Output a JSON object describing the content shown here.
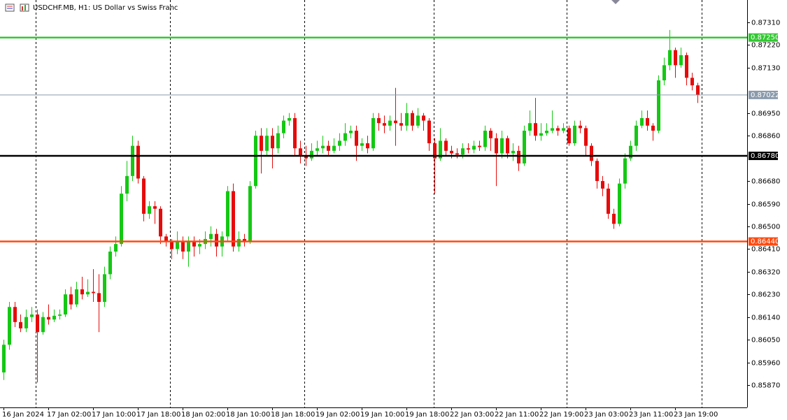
{
  "chart_data": {
    "type": "candlestick",
    "title": "USDCHF.MB, H1:  US Dollar vs Swiss Franc",
    "categories": [
      "16 Jan 2024",
      null,
      null,
      null,
      null,
      null,
      null,
      null,
      "17 Jan 02:00",
      null,
      null,
      null,
      null,
      null,
      null,
      null,
      "17 Jan 10:00",
      null,
      null,
      null,
      null,
      null,
      null,
      null,
      "17 Jan 18:00",
      null,
      null,
      null,
      null,
      null,
      null,
      null,
      "18 Jan 02:00",
      null,
      null,
      null,
      null,
      null,
      null,
      null,
      "18 Jan 10:00",
      null,
      null,
      null,
      null,
      null,
      null,
      null,
      "18 Jan 18:00",
      null,
      null,
      null,
      null,
      null,
      null,
      null,
      "19 Jan 02:00",
      null,
      null,
      null,
      null,
      null,
      null,
      null,
      "19 Jan 10:00",
      null,
      null,
      null,
      null,
      null,
      null,
      null,
      "19 Jan 18:00",
      null,
      null,
      null,
      null,
      null,
      null,
      null,
      "22 Jan 03:00",
      null,
      null,
      null,
      null,
      null,
      null,
      null,
      "22 Jan 11:00",
      null,
      null,
      null,
      null,
      null,
      null,
      null,
      "22 Jan 19:00",
      null,
      null,
      null,
      null,
      null,
      null,
      null,
      "23 Jan 03:00",
      null,
      null,
      null,
      null,
      null,
      null,
      null,
      "23 Jan 11:00",
      null,
      null,
      null,
      null,
      null,
      null,
      null,
      "23 Jan 19:00",
      null,
      null,
      null,
      null
    ],
    "open": [
      0.8592,
      0.8603,
      0.8618,
      0.8612,
      0.86095,
      0.8614,
      0.8615,
      0.8608,
      0.8614,
      0.8613,
      0.86145,
      0.8615,
      0.8623,
      0.8619,
      0.8625,
      0.8623,
      0.8624,
      0.86235,
      0.862,
      0.8631,
      0.864,
      0.8643,
      0.8663,
      0.867,
      0.8682,
      0.8669,
      0.8655,
      0.8658,
      0.8657,
      0.8646,
      0.8644,
      0.8641,
      0.8644,
      0.864,
      0.8644,
      0.8642,
      0.8643,
      0.8645,
      0.8647,
      0.8642,
      0.8646,
      0.8664,
      0.8642,
      0.8645,
      0.8644,
      0.8666,
      0.8686,
      0.868,
      0.8686,
      0.8681,
      0.8687,
      0.8692,
      0.8693,
      0.8681,
      0.8678,
      0.8677,
      0.868,
      0.8681,
      0.8682,
      0.868,
      0.8682,
      0.8684,
      0.8687,
      0.8688,
      0.8682,
      0.8683,
      0.8681,
      0.8693,
      0.8691,
      0.869,
      0.8692,
      0.8691,
      0.869,
      0.8695,
      0.869,
      0.8694,
      0.8692,
      0.8683,
      0.8677,
      0.8684,
      0.868,
      0.8679,
      0.86785,
      0.8681,
      0.86805,
      0.8682,
      0.86815,
      0.8688,
      0.8685,
      0.8679,
      0.8685,
      0.8679,
      0.868,
      0.8675,
      0.8688,
      0.8691,
      0.8686,
      0.8687,
      0.8688,
      0.8689,
      0.8688,
      0.8689,
      0.8683,
      0.869,
      0.8689,
      0.8682,
      0.8676,
      0.8668,
      0.8665,
      0.8655,
      0.8651,
      0.8667,
      0.8677,
      0.8682,
      0.869,
      0.8693,
      0.869,
      0.8688,
      0.8708,
      0.8714,
      0.872,
      0.8714,
      0.8718,
      0.8709,
      0.8706
    ],
    "high": [
      0.8605,
      0.862,
      0.862,
      0.8615,
      0.8617,
      0.8618,
      0.8617,
      0.8616,
      0.8619,
      0.8617,
      0.8617,
      0.8625,
      0.8626,
      0.8628,
      0.863,
      0.8629,
      0.8633,
      0.8631,
      0.8634,
      0.8642,
      0.8646,
      0.8666,
      0.8676,
      0.8686,
      0.8684,
      0.867,
      0.866,
      0.866,
      0.8658,
      0.8647,
      0.8645,
      0.8648,
      0.8646,
      0.8646,
      0.8646,
      0.8645,
      0.8648,
      0.865,
      0.8649,
      0.8648,
      0.8666,
      0.8667,
      0.8648,
      0.8647,
      0.8668,
      0.8688,
      0.8689,
      0.8689,
      0.8689,
      0.869,
      0.8694,
      0.8695,
      0.8695,
      0.8684,
      0.8682,
      0.8683,
      0.8684,
      0.8686,
      0.8684,
      0.8685,
      0.8687,
      0.8691,
      0.869,
      0.869,
      0.8685,
      0.8686,
      0.8695,
      0.8695,
      0.8694,
      0.8694,
      0.8705,
      0.8695,
      0.8699,
      0.8696,
      0.8697,
      0.8695,
      0.8693,
      0.8685,
      0.8689,
      0.8685,
      0.8682,
      0.8681,
      0.8683,
      0.8683,
      0.8684,
      0.8684,
      0.869,
      0.8689,
      0.8687,
      0.8688,
      0.8686,
      0.8683,
      0.8682,
      0.869,
      0.8696,
      0.8701,
      0.8691,
      0.8691,
      0.8696,
      0.869,
      0.8691,
      0.869,
      0.8692,
      0.8692,
      0.869,
      0.8683,
      0.8677,
      0.867,
      0.8667,
      0.8657,
      0.8669,
      0.8679,
      0.8684,
      0.8692,
      0.8696,
      0.8696,
      0.8691,
      0.871,
      0.8717,
      0.8728,
      0.8721,
      0.8721,
      0.8719,
      0.8711,
      0.8707
    ],
    "low": [
      0.8589,
      0.8601,
      0.861,
      0.8608,
      0.8608,
      0.8612,
      0.8588,
      0.8607,
      0.8611,
      0.8612,
      0.8613,
      0.8614,
      0.8617,
      0.8618,
      0.8621,
      0.8622,
      0.862,
      0.8608,
      0.8618,
      0.8629,
      0.8638,
      0.8642,
      0.866,
      0.8668,
      0.8667,
      0.8652,
      0.8653,
      0.8651,
      0.8643,
      0.8642,
      0.8637,
      0.8639,
      0.8637,
      0.8634,
      0.8638,
      0.8639,
      0.8641,
      0.8642,
      0.8638,
      0.8638,
      0.8644,
      0.864,
      0.864,
      0.8642,
      0.8643,
      0.8665,
      0.8671,
      0.8678,
      0.8673,
      0.8679,
      0.8685,
      0.869,
      0.8678,
      0.8675,
      0.8674,
      0.8676,
      0.8678,
      0.8679,
      0.8678,
      0.8679,
      0.868,
      0.8682,
      0.8685,
      0.8676,
      0.868,
      0.8679,
      0.868,
      0.8688,
      0.8687,
      0.8688,
      0.8682,
      0.8688,
      0.8688,
      0.8688,
      0.8689,
      0.8688,
      0.868,
      0.8663,
      0.8676,
      0.8678,
      0.8677,
      0.8677,
      0.8677,
      0.8679,
      0.8679,
      0.868,
      0.868,
      0.868,
      0.8666,
      0.8677,
      0.8677,
      0.8676,
      0.8672,
      0.8674,
      0.8686,
      0.8684,
      0.8684,
      0.8686,
      0.8687,
      0.8686,
      0.8687,
      0.8682,
      0.8682,
      0.8687,
      0.8678,
      0.8674,
      0.8665,
      0.8662,
      0.8653,
      0.8649,
      0.865,
      0.8665,
      0.8676,
      0.868,
      0.8689,
      0.8688,
      0.8684,
      0.8687,
      0.8706,
      0.8712,
      0.8709,
      0.8713,
      0.8706,
      0.8704,
      0.8699
    ],
    "close": [
      0.8603,
      0.8618,
      0.8612,
      0.86095,
      0.8614,
      0.8615,
      0.8608,
      0.8614,
      0.8613,
      0.86145,
      0.8615,
      0.8623,
      0.8619,
      0.8625,
      0.8623,
      0.8624,
      0.86235,
      0.862,
      0.8631,
      0.864,
      0.8643,
      0.8663,
      0.867,
      0.8682,
      0.8669,
      0.8655,
      0.8658,
      0.8657,
      0.8646,
      0.8644,
      0.8641,
      0.8644,
      0.864,
      0.8644,
      0.8642,
      0.8643,
      0.8645,
      0.8647,
      0.8642,
      0.8646,
      0.8664,
      0.8642,
      0.8645,
      0.8644,
      0.8666,
      0.8686,
      0.868,
      0.8686,
      0.8681,
      0.8687,
      0.8692,
      0.8693,
      0.8681,
      0.8678,
      0.8677,
      0.868,
      0.8681,
      0.8682,
      0.868,
      0.8682,
      0.8684,
      0.8687,
      0.8688,
      0.8682,
      0.8683,
      0.8681,
      0.8693,
      0.8691,
      0.869,
      0.8692,
      0.8691,
      0.869,
      0.8695,
      0.869,
      0.8694,
      0.8692,
      0.8683,
      0.8677,
      0.8684,
      0.868,
      0.8679,
      0.86785,
      0.8681,
      0.86805,
      0.8682,
      0.86815,
      0.8688,
      0.8685,
      0.8679,
      0.8685,
      0.8679,
      0.868,
      0.8675,
      0.8688,
      0.8691,
      0.8686,
      0.8687,
      0.8688,
      0.8689,
      0.8688,
      0.8689,
      0.8683,
      0.869,
      0.8689,
      0.8682,
      0.8676,
      0.8668,
      0.8665,
      0.8655,
      0.8651,
      0.8667,
      0.8677,
      0.8682,
      0.869,
      0.8693,
      0.869,
      0.8688,
      0.8708,
      0.8714,
      0.872,
      0.8714,
      0.8718,
      0.8709,
      0.8706,
      0.87022
    ],
    "up_color": "#14c814",
    "down_color": "#e60b0b",
    "ylim": [
      0.85781,
      0.87399
    ],
    "yticks": [
      {
        "value": 0.8731,
        "label": "0.87310"
      },
      {
        "value": 0.8722,
        "label": "0.87220"
      },
      {
        "value": 0.8713,
        "label": "0.87130"
      },
      {
        "value": 0.8695,
        "label": "0.86950"
      },
      {
        "value": 0.8686,
        "label": "0.86860"
      },
      {
        "value": 0.8668,
        "label": "0.86680"
      },
      {
        "value": 0.8659,
        "label": "0.86590"
      },
      {
        "value": 0.865,
        "label": "0.86500"
      },
      {
        "value": 0.8641,
        "label": "0.86410"
      },
      {
        "value": 0.8632,
        "label": "0.86320"
      },
      {
        "value": 0.8623,
        "label": "0.86230"
      },
      {
        "value": 0.8614,
        "label": "0.86140"
      },
      {
        "value": 0.8605,
        "label": "0.86050"
      },
      {
        "value": 0.8596,
        "label": "0.85960"
      },
      {
        "value": 0.8587,
        "label": "0.85870"
      }
    ],
    "levels": [
      {
        "value": 0.8725,
        "label": "0.87250",
        "color": "#32c832"
      },
      {
        "value": 0.87022,
        "label": "0.87022",
        "color": "#8a9aab"
      },
      {
        "value": 0.8678,
        "label": "0.86780",
        "color": "#000000"
      },
      {
        "value": 0.8644,
        "label": "0.86440",
        "color": "#ff4a10"
      }
    ],
    "grid": false
  }
}
